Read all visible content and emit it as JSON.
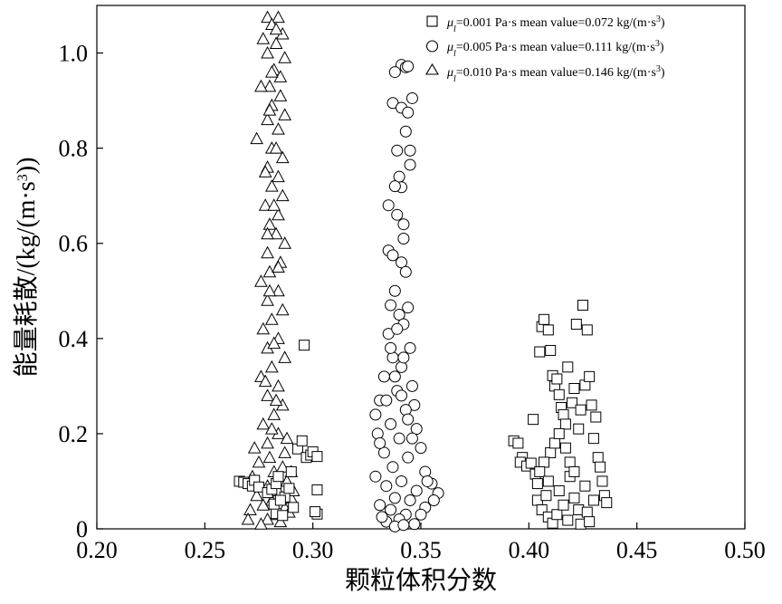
{
  "chart_data": {
    "type": "scatter",
    "title": "",
    "xlabel": "颗粒体积分数",
    "ylabel_prefix": "能量耗散/(kg/(m·s",
    "ylabel_sup": "3",
    "ylabel_suffix": "))",
    "xlim": [
      0.2,
      0.5
    ],
    "ylim": [
      0,
      1.1
    ],
    "xticks": [
      "0.20",
      "0.25",
      "0.30",
      "0.35",
      "0.40",
      "0.45",
      "0.50"
    ],
    "yticks": [
      "0",
      "0.2",
      "0.4",
      "0.6",
      "0.8",
      "1.0"
    ],
    "grid": false,
    "legend_position": "top-right",
    "series": [
      {
        "marker": "square",
        "legend": {
          "mu": "μ",
          "sub": "l",
          "eq": "=0.001 Pa·s  mean value=0.072 kg/(m·s",
          "sup": "3",
          "end": ")"
        },
        "mean": 0.072,
        "points": [
          [
            0.266,
            0.1
          ],
          [
            0.268,
            0.098
          ],
          [
            0.27,
            0.095
          ],
          [
            0.272,
            0.09
          ],
          [
            0.273,
            0.102
          ],
          [
            0.275,
            0.088
          ],
          [
            0.279,
            0.076
          ],
          [
            0.281,
            0.083
          ],
          [
            0.283,
            0.095
          ],
          [
            0.284,
            0.11
          ],
          [
            0.287,
            0.067
          ],
          [
            0.289,
            0.085
          ],
          [
            0.29,
            0.12
          ],
          [
            0.291,
            0.045
          ],
          [
            0.293,
            0.168
          ],
          [
            0.295,
            0.185
          ],
          [
            0.296,
            0.386
          ],
          [
            0.297,
            0.15
          ],
          [
            0.299,
            0.155
          ],
          [
            0.3,
            0.162
          ],
          [
            0.302,
            0.152
          ],
          [
            0.302,
            0.082
          ],
          [
            0.302,
            0.031
          ],
          [
            0.301,
            0.036
          ],
          [
            0.283,
            0.032
          ],
          [
            0.286,
            0.028
          ],
          [
            0.282,
            0.052
          ],
          [
            0.285,
            0.06
          ],
          [
            0.393,
            0.185
          ],
          [
            0.395,
            0.18
          ],
          [
            0.397,
            0.15
          ],
          [
            0.396,
            0.14
          ],
          [
            0.399,
            0.132
          ],
          [
            0.401,
            0.138
          ],
          [
            0.402,
            0.23
          ],
          [
            0.403,
            0.115
          ],
          [
            0.404,
            0.095
          ],
          [
            0.405,
            0.372
          ],
          [
            0.406,
            0.425
          ],
          [
            0.407,
            0.44
          ],
          [
            0.409,
            0.418
          ],
          [
            0.41,
            0.375
          ],
          [
            0.411,
            0.322
          ],
          [
            0.412,
            0.3
          ],
          [
            0.413,
            0.315
          ],
          [
            0.414,
            0.282
          ],
          [
            0.415,
            0.255
          ],
          [
            0.416,
            0.24
          ],
          [
            0.417,
            0.22
          ],
          [
            0.418,
            0.34
          ],
          [
            0.42,
            0.265
          ],
          [
            0.421,
            0.295
          ],
          [
            0.422,
            0.43
          ],
          [
            0.423,
            0.21
          ],
          [
            0.424,
            0.25
          ],
          [
            0.425,
            0.47
          ],
          [
            0.426,
            0.302
          ],
          [
            0.427,
            0.418
          ],
          [
            0.428,
            0.32
          ],
          [
            0.429,
            0.26
          ],
          [
            0.43,
            0.19
          ],
          [
            0.431,
            0.235
          ],
          [
            0.432,
            0.15
          ],
          [
            0.433,
            0.13
          ],
          [
            0.434,
            0.1
          ],
          [
            0.435,
            0.07
          ],
          [
            0.436,
            0.055
          ],
          [
            0.404,
            0.06
          ],
          [
            0.406,
            0.04
          ],
          [
            0.408,
            0.07
          ],
          [
            0.409,
            0.025
          ],
          [
            0.411,
            0.012
          ],
          [
            0.413,
            0.03
          ],
          [
            0.414,
            0.08
          ],
          [
            0.416,
            0.05
          ],
          [
            0.418,
            0.018
          ],
          [
            0.419,
            0.11
          ],
          [
            0.421,
            0.065
          ],
          [
            0.423,
            0.04
          ],
          [
            0.424,
            0.01
          ],
          [
            0.426,
            0.09
          ],
          [
            0.427,
            0.035
          ],
          [
            0.428,
            0.015
          ],
          [
            0.43,
            0.06
          ],
          [
            0.41,
            0.16
          ],
          [
            0.412,
            0.18
          ],
          [
            0.414,
            0.2
          ],
          [
            0.417,
            0.17
          ],
          [
            0.419,
            0.14
          ],
          [
            0.421,
            0.12
          ],
          [
            0.407,
            0.14
          ],
          [
            0.405,
            0.12
          ],
          [
            0.409,
            0.1
          ]
        ]
      },
      {
        "marker": "circle",
        "legend": {
          "mu": "μ",
          "sub": "l",
          "eq": "=0.005 Pa·s  mean value=0.111 kg/(m·s",
          "sup": "3",
          "end": ")"
        },
        "mean": 0.111,
        "points": [
          [
            0.341,
            0.975
          ],
          [
            0.343,
            0.97
          ],
          [
            0.344,
            0.972
          ],
          [
            0.338,
            0.96
          ],
          [
            0.346,
            0.905
          ],
          [
            0.337,
            0.895
          ],
          [
            0.341,
            0.885
          ],
          [
            0.344,
            0.875
          ],
          [
            0.343,
            0.835
          ],
          [
            0.345,
            0.795
          ],
          [
            0.339,
            0.795
          ],
          [
            0.345,
            0.765
          ],
          [
            0.34,
            0.74
          ],
          [
            0.341,
            0.718
          ],
          [
            0.338,
            0.72
          ],
          [
            0.335,
            0.68
          ],
          [
            0.342,
            0.64
          ],
          [
            0.339,
            0.66
          ],
          [
            0.342,
            0.61
          ],
          [
            0.335,
            0.585
          ],
          [
            0.337,
            0.575
          ],
          [
            0.341,
            0.56
          ],
          [
            0.343,
            0.54
          ],
          [
            0.338,
            0.5
          ],
          [
            0.344,
            0.465
          ],
          [
            0.336,
            0.47
          ],
          [
            0.34,
            0.45
          ],
          [
            0.342,
            0.43
          ],
          [
            0.335,
            0.41
          ],
          [
            0.345,
            0.38
          ],
          [
            0.337,
            0.36
          ],
          [
            0.341,
            0.34
          ],
          [
            0.333,
            0.32
          ],
          [
            0.346,
            0.3
          ],
          [
            0.339,
            0.29
          ],
          [
            0.331,
            0.27
          ],
          [
            0.347,
            0.26
          ],
          [
            0.329,
            0.24
          ],
          [
            0.343,
            0.25
          ],
          [
            0.336,
            0.22
          ],
          [
            0.348,
            0.21
          ],
          [
            0.33,
            0.2
          ],
          [
            0.34,
            0.19
          ],
          [
            0.35,
            0.17
          ],
          [
            0.333,
            0.16
          ],
          [
            0.344,
            0.15
          ],
          [
            0.337,
            0.13
          ],
          [
            0.352,
            0.12
          ],
          [
            0.329,
            0.11
          ],
          [
            0.341,
            0.1
          ],
          [
            0.355,
            0.095
          ],
          [
            0.334,
            0.09
          ],
          [
            0.348,
            0.08
          ],
          [
            0.358,
            0.075
          ],
          [
            0.338,
            0.065
          ],
          [
            0.345,
            0.06
          ],
          [
            0.331,
            0.05
          ],
          [
            0.352,
            0.045
          ],
          [
            0.336,
            0.04
          ],
          [
            0.343,
            0.03
          ],
          [
            0.34,
            0.02
          ],
          [
            0.334,
            0.015
          ],
          [
            0.347,
            0.01
          ],
          [
            0.338,
            0.005
          ],
          [
            0.342,
            0.008
          ],
          [
            0.332,
            0.025
          ],
          [
            0.35,
            0.03
          ],
          [
            0.339,
            0.42
          ],
          [
            0.336,
            0.38
          ],
          [
            0.342,
            0.36
          ],
          [
            0.338,
            0.32
          ],
          [
            0.341,
            0.28
          ],
          [
            0.334,
            0.27
          ],
          [
            0.344,
            0.23
          ],
          [
            0.346,
            0.19
          ],
          [
            0.331,
            0.18
          ],
          [
            0.353,
            0.1
          ],
          [
            0.356,
            0.06
          ]
        ]
      },
      {
        "marker": "triangle",
        "legend": {
          "mu": "μ",
          "sub": "l",
          "eq": "=0.010 Pa·s  mean value=0.146 kg/(m·s",
          "sup": "3",
          "end": ")"
        },
        "mean": 0.146,
        "points": [
          [
            0.279,
            1.075
          ],
          [
            0.284,
            1.075
          ],
          [
            0.281,
            1.06
          ],
          [
            0.286,
            1.04
          ],
          [
            0.277,
            1.03
          ],
          [
            0.283,
            1.02
          ],
          [
            0.279,
            1.0
          ],
          [
            0.287,
            0.99
          ],
          [
            0.282,
            0.965
          ],
          [
            0.285,
            0.95
          ],
          [
            0.28,
            0.93
          ],
          [
            0.276,
            0.93
          ],
          [
            0.285,
            0.91
          ],
          [
            0.281,
            0.89
          ],
          [
            0.287,
            0.87
          ],
          [
            0.279,
            0.86
          ],
          [
            0.284,
            0.84
          ],
          [
            0.274,
            0.82
          ],
          [
            0.281,
            0.8
          ],
          [
            0.286,
            0.78
          ],
          [
            0.279,
            0.76
          ],
          [
            0.284,
            0.74
          ],
          [
            0.281,
            0.72
          ],
          [
            0.286,
            0.7
          ],
          [
            0.278,
            0.68
          ],
          [
            0.284,
            0.66
          ],
          [
            0.28,
            0.64
          ],
          [
            0.283,
            0.62
          ],
          [
            0.287,
            0.6
          ],
          [
            0.279,
            0.58
          ],
          [
            0.285,
            0.56
          ],
          [
            0.28,
            0.54
          ],
          [
            0.276,
            0.52
          ],
          [
            0.284,
            0.5
          ],
          [
            0.279,
            0.48
          ],
          [
            0.286,
            0.46
          ],
          [
            0.281,
            0.44
          ],
          [
            0.277,
            0.42
          ],
          [
            0.284,
            0.4
          ],
          [
            0.279,
            0.38
          ],
          [
            0.287,
            0.36
          ],
          [
            0.281,
            0.34
          ],
          [
            0.276,
            0.32
          ],
          [
            0.284,
            0.3
          ],
          [
            0.279,
            0.28
          ],
          [
            0.286,
            0.26
          ],
          [
            0.282,
            0.24
          ],
          [
            0.277,
            0.22
          ],
          [
            0.284,
            0.2
          ],
          [
            0.279,
            0.18
          ],
          [
            0.287,
            0.16
          ],
          [
            0.28,
            0.15
          ],
          [
            0.275,
            0.14
          ],
          [
            0.286,
            0.13
          ],
          [
            0.282,
            0.12
          ],
          [
            0.272,
            0.11
          ],
          [
            0.288,
            0.1
          ],
          [
            0.279,
            0.09
          ],
          [
            0.284,
            0.08
          ],
          [
            0.274,
            0.07
          ],
          [
            0.29,
            0.065
          ],
          [
            0.281,
            0.06
          ],
          [
            0.277,
            0.05
          ],
          [
            0.287,
            0.045
          ],
          [
            0.271,
            0.04
          ],
          [
            0.283,
            0.03
          ],
          [
            0.279,
            0.02
          ],
          [
            0.285,
            0.015
          ],
          [
            0.27,
            0.02
          ],
          [
            0.289,
            0.035
          ],
          [
            0.276,
            0.01
          ],
          [
            0.282,
            0.39
          ],
          [
            0.278,
            0.31
          ],
          [
            0.283,
            0.27
          ],
          [
            0.281,
            0.21
          ],
          [
            0.288,
            0.19
          ],
          [
            0.273,
            0.17
          ],
          [
            0.29,
            0.12
          ],
          [
            0.291,
            0.08
          ],
          [
            0.28,
            0.5
          ],
          [
            0.284,
            0.55
          ],
          [
            0.279,
            0.62
          ],
          [
            0.282,
            0.68
          ],
          [
            0.278,
            0.75
          ],
          [
            0.283,
            0.8
          ],
          [
            0.28,
            0.88
          ],
          [
            0.281,
            0.96
          ],
          [
            0.283,
            1.05
          ]
        ]
      }
    ]
  }
}
